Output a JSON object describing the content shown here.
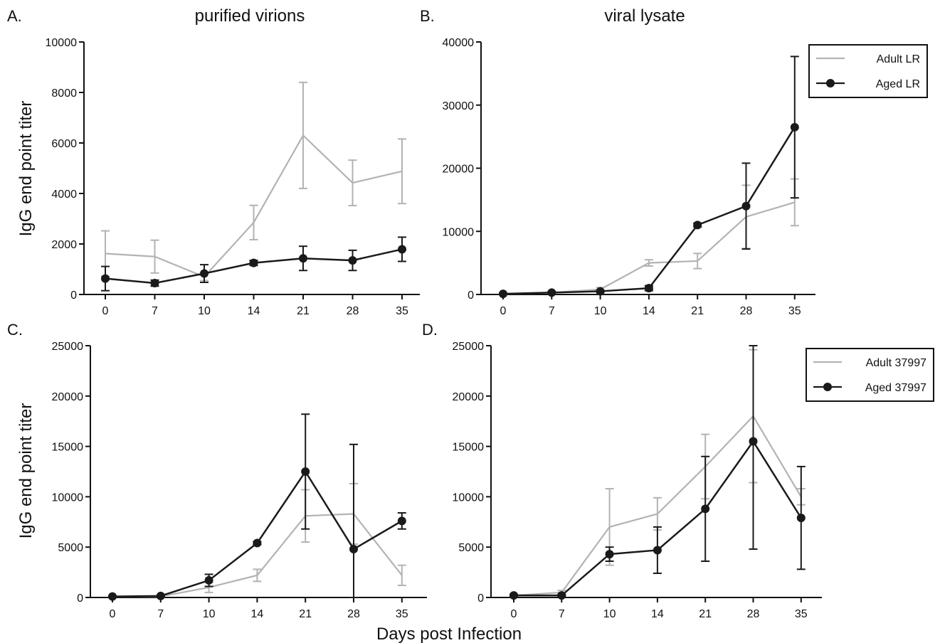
{
  "figure": {
    "ylabel": "IgG end point titer",
    "xlabel": "Days post Infection"
  },
  "chart_data": [
    {
      "panel": "A.",
      "type": "line",
      "title": "purified virions",
      "ylabel": "IgG end point titer",
      "xlabel": "",
      "categories": [
        "0",
        "7",
        "10",
        "14",
        "21",
        "28",
        "35"
      ],
      "ylim": [
        0,
        10000
      ],
      "yticks": [
        0,
        2000,
        4000,
        6000,
        8000,
        10000
      ],
      "legend": null,
      "series": [
        {
          "key": "adult",
          "color": "#b3b3b3",
          "marker": "none",
          "values": [
            1620,
            1500,
            700,
            2850,
            6300,
            4420,
            4880
          ],
          "errors": [
            900,
            650,
            150,
            680,
            2100,
            900,
            1280
          ]
        },
        {
          "key": "aged",
          "color": "#1a1a1a",
          "marker": "circle",
          "values": [
            630,
            450,
            830,
            1250,
            1430,
            1350,
            1790
          ],
          "errors": [
            480,
            120,
            350,
            100,
            480,
            400,
            480
          ]
        }
      ]
    },
    {
      "panel": "B.",
      "type": "line",
      "title": "viral lysate",
      "ylabel": "",
      "xlabel": "",
      "categories": [
        "0",
        "7",
        "10",
        "14",
        "21",
        "28",
        "35"
      ],
      "ylim": [
        0,
        40000
      ],
      "yticks": [
        0,
        10000,
        20000,
        30000,
        40000
      ],
      "legend": {
        "position": "top-right",
        "labels": [
          "Adult LR",
          "Aged LR"
        ]
      },
      "series": [
        {
          "key": "adult",
          "name": "Adult LR",
          "color": "#b3b3b3",
          "marker": "none",
          "values": [
            100,
            300,
            800,
            5000,
            5300,
            12300,
            14600
          ],
          "errors": [
            80,
            150,
            300,
            500,
            1200,
            5000,
            3700
          ]
        },
        {
          "key": "aged",
          "name": "Aged LR",
          "color": "#1a1a1a",
          "marker": "circle",
          "values": [
            100,
            300,
            500,
            1000,
            11000,
            14000,
            26500
          ],
          "errors": [
            80,
            100,
            150,
            400,
            300,
            6800,
            11200
          ]
        }
      ]
    },
    {
      "panel": "C.",
      "type": "line",
      "title": "",
      "ylabel": "IgG end point titer",
      "xlabel": "",
      "categories": [
        "0",
        "7",
        "10",
        "14",
        "21",
        "28",
        "35"
      ],
      "ylim": [
        0,
        25000
      ],
      "yticks": [
        0,
        5000,
        10000,
        15000,
        20000,
        25000
      ],
      "legend": null,
      "series": [
        {
          "key": "adult",
          "color": "#b3b3b3",
          "marker": "none",
          "values": [
            100,
            100,
            1000,
            2200,
            8100,
            8300,
            2200
          ],
          "errors": [
            50,
            50,
            500,
            600,
            2600,
            3000,
            1000
          ]
        },
        {
          "key": "aged",
          "color": "#1a1a1a",
          "marker": "circle",
          "values": [
            100,
            150,
            1700,
            5400,
            12500,
            4800,
            7600
          ],
          "errors": [
            50,
            50,
            600,
            150,
            5700,
            10400,
            800
          ]
        }
      ]
    },
    {
      "panel": "D.",
      "type": "line",
      "title": "",
      "ylabel": "",
      "xlabel": "Days post Infection",
      "categories": [
        "0",
        "7",
        "10",
        "14",
        "21",
        "28",
        "35"
      ],
      "ylim": [
        0,
        25000
      ],
      "yticks": [
        0,
        5000,
        10000,
        15000,
        20000,
        25000
      ],
      "legend": {
        "position": "top-right",
        "labels": [
          "Adult 37997",
          "Aged 37997"
        ]
      },
      "series": [
        {
          "key": "adult",
          "name": "Adult 37997",
          "color": "#b3b3b3",
          "marker": "none",
          "values": [
            200,
            500,
            7000,
            8300,
            13000,
            18000,
            10000
          ],
          "errors": [
            100,
            200,
            3800,
            1600,
            3200,
            6600,
            800
          ]
        },
        {
          "key": "aged",
          "name": "Aged 37997",
          "color": "#1a1a1a",
          "marker": "circle",
          "values": [
            200,
            200,
            4300,
            4700,
            8800,
            15500,
            7900
          ],
          "errors": [
            100,
            100,
            700,
            2300,
            5200,
            10700,
            5100
          ]
        }
      ]
    }
  ]
}
